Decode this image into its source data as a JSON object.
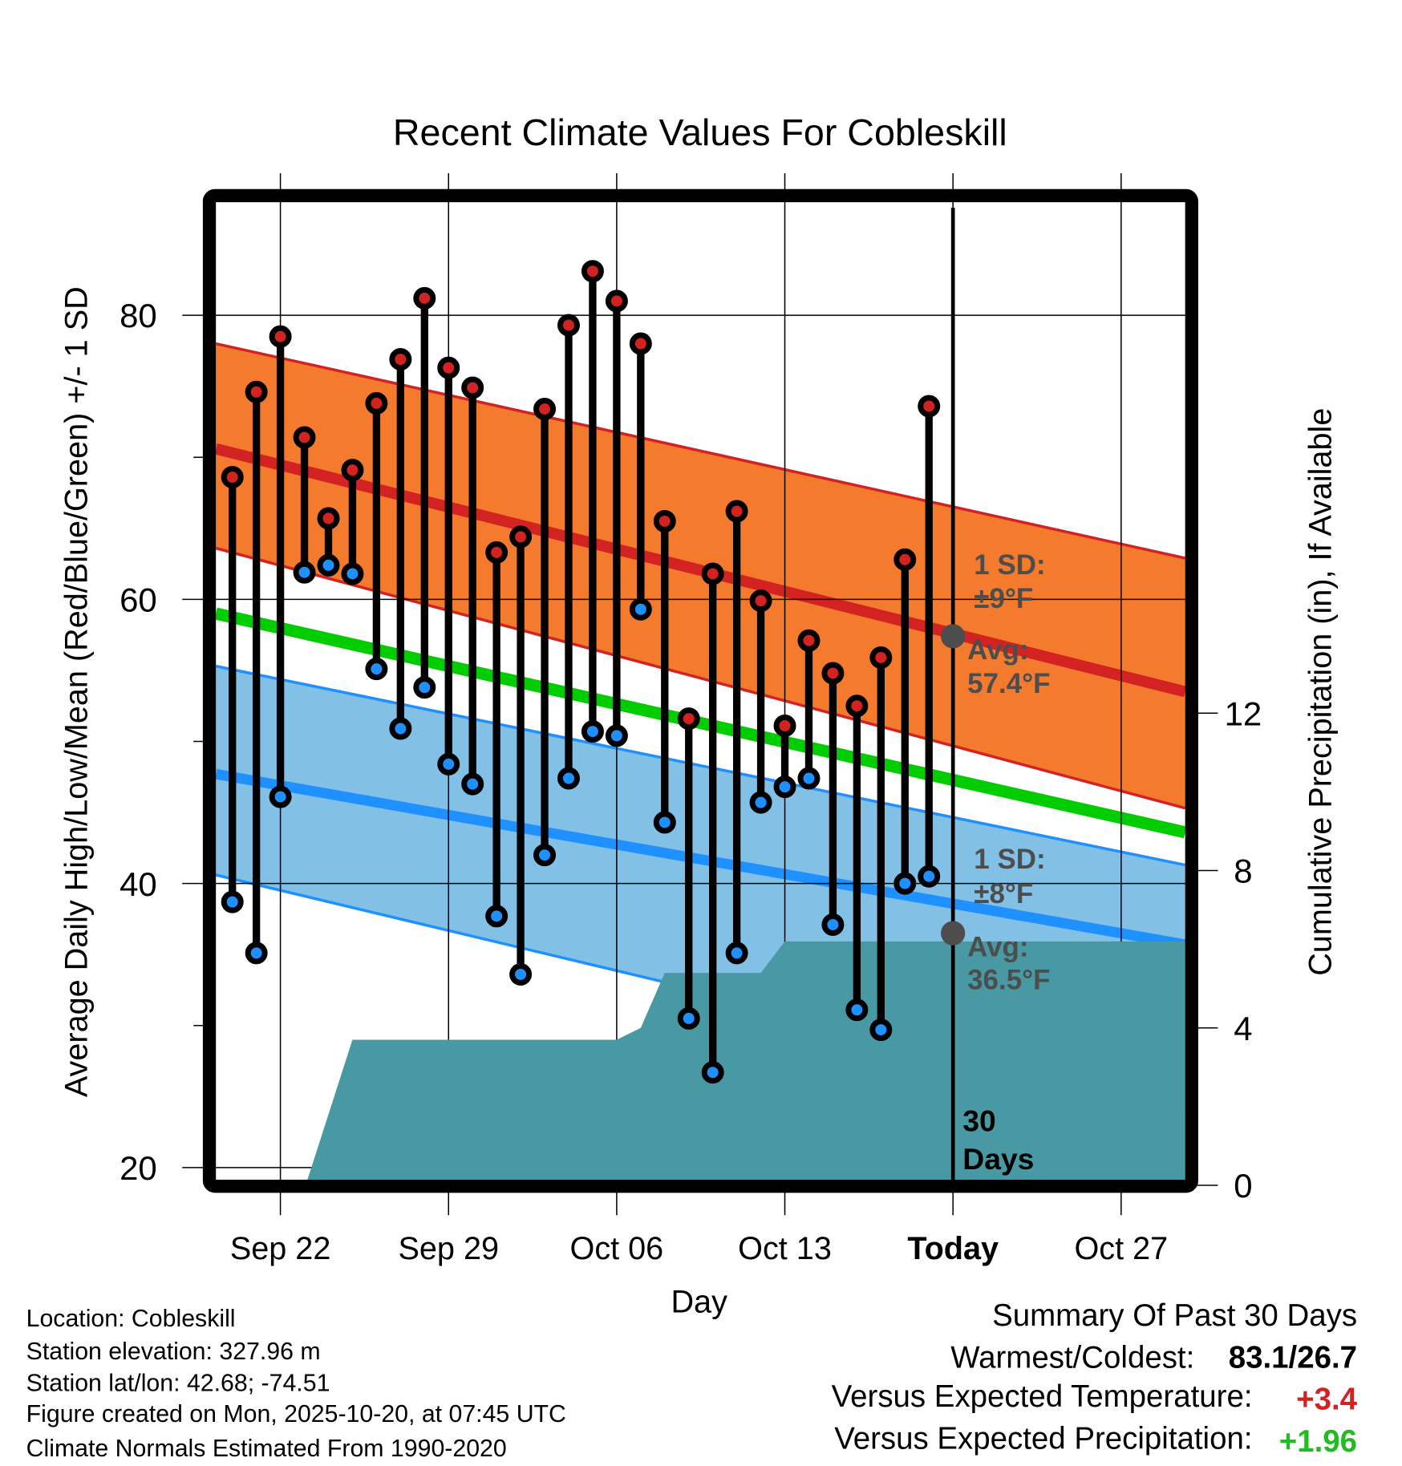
{
  "chart_data": {
    "type": "line",
    "title": "Recent Climate Values For Cobleskill",
    "xlabel": "Day",
    "ylabel": "Average Daily High/Low/Mean (Red/Blue/Green) +/- 1 SD",
    "ylabel_right": "Cumulative Precipitation (in), If Available",
    "ylim": [
      19.3,
      88
    ],
    "ylim_right": [
      0,
      24.8
    ],
    "xlim_days_from_sep22": [
      -2.68,
      37.7
    ],
    "grid": true,
    "x_ticks": [
      {
        "day": 0,
        "label": "Sep 22",
        "bold": false
      },
      {
        "day": 7,
        "label": "Sep 29",
        "bold": false
      },
      {
        "day": 14,
        "label": "Oct 06",
        "bold": false
      },
      {
        "day": 21,
        "label": "Oct 13",
        "bold": false
      },
      {
        "day": 28,
        "label": "Today",
        "bold": true
      },
      {
        "day": 35,
        "label": "Oct 27",
        "bold": false
      }
    ],
    "y_ticks": [
      20,
      40,
      60,
      80
    ],
    "y_minor_ticks": [
      30,
      50,
      70
    ],
    "y_ticks_right": [
      0,
      4,
      8,
      12
    ],
    "dates": [
      "Sep 20",
      "Sep 21",
      "Sep 22",
      "Sep 23",
      "Sep 24",
      "Sep 25",
      "Sep 26",
      "Sep 27",
      "Sep 28",
      "Sep 29",
      "Sep 30",
      "Oct 01",
      "Oct 02",
      "Oct 03",
      "Oct 04",
      "Oct 05",
      "Oct 06",
      "Oct 07",
      "Oct 08",
      "Oct 09",
      "Oct 10",
      "Oct 11",
      "Oct 12",
      "Oct 13",
      "Oct 14",
      "Oct 15",
      "Oct 16",
      "Oct 17",
      "Oct 18",
      "Oct 19"
    ],
    "day_offsets": [
      -2,
      -1,
      0,
      1,
      2,
      3,
      4,
      5,
      6,
      7,
      8,
      9,
      10,
      11,
      12,
      13,
      14,
      15,
      16,
      17,
      18,
      19,
      20,
      21,
      22,
      23,
      24,
      25,
      26,
      27
    ],
    "series": [
      {
        "name": "Daily High",
        "color": "#d22222",
        "values": [
          68.6,
          74.6,
          78.5,
          71.4,
          65.7,
          69.1,
          73.8,
          76.9,
          81.2,
          76.3,
          74.9,
          63.3,
          64.4,
          73.4,
          79.3,
          83.1,
          81.0,
          78.0,
          65.5,
          51.6,
          61.8,
          66.2,
          59.9,
          51.1,
          57.1,
          54.8,
          52.5,
          55.9,
          62.8,
          73.6
        ]
      },
      {
        "name": "Daily Low",
        "color": "#1e90ff",
        "values": [
          38.7,
          35.1,
          46.1,
          61.9,
          62.4,
          61.8,
          55.1,
          50.9,
          53.8,
          48.4,
          47.0,
          37.7,
          33.6,
          42.0,
          47.4,
          50.7,
          50.4,
          59.3,
          44.3,
          30.5,
          26.7,
          35.1,
          45.7,
          46.8,
          47.4,
          37.1,
          31.1,
          29.7,
          40.0,
          40.5
        ]
      },
      {
        "name": "Cumulative Precipitation",
        "color": "#4899a3",
        "points": [
          [
            1.05,
            0
          ],
          [
            3,
            3.7
          ],
          [
            14,
            3.7
          ],
          [
            15,
            4.0
          ],
          [
            16,
            5.4
          ],
          [
            20,
            5.4
          ],
          [
            21,
            6.2
          ],
          [
            37.7,
            6.2
          ]
        ]
      }
    ],
    "normals": {
      "high_avg": [
        70.6,
        53.5
      ],
      "high_upper": [
        78.0,
        62.9
      ],
      "high_lower": [
        63.6,
        45.3
      ],
      "mean": [
        59.0,
        43.6
      ],
      "low_avg": [
        47.7,
        35.7
      ],
      "low_upper": [
        55.3,
        41.3
      ],
      "low_lower": [
        40.6,
        24.3
      ],
      "colors": {
        "high_band": "#f47a2e",
        "high_line": "#d22222",
        "mean_line": "#00cc00",
        "low_band": "#82c0e6",
        "low_line": "#1e90ff"
      }
    },
    "annotations": {
      "high_sd_label": "1 SD:",
      "high_sd_value": "±9°F",
      "high_avg_label": "Avg:",
      "high_avg_value": "57.4°F",
      "high_avg_today": 57.4,
      "low_sd_label": "1 SD:",
      "low_sd_value": "±8°F",
      "low_avg_label": "Avg:",
      "low_avg_value": "36.5°F",
      "low_avg_today": 36.5,
      "period_number": "30",
      "period_unit": "Days",
      "today_day": 28
    }
  },
  "info": {
    "location": "Location: Cobleskill",
    "elevation": "Station elevation: 327.96 m",
    "latlon": "Station lat/lon: 42.68; -74.51",
    "created": "Figure created on Mon, 2025-10-20, at 07:45 UTC",
    "normals": "Climate Normals Estimated From 1990-2020"
  },
  "summary": {
    "title": "Summary Of Past 30 Days",
    "warm_cold_label": "Warmest/Coldest:",
    "warm_cold_value": "83.1/26.7",
    "temp_label": "Versus Expected Temperature:",
    "temp_value": "+3.4",
    "temp_color": "#d22222",
    "precip_label": "Versus Expected Precipitation:",
    "precip_value": "+1.96",
    "precip_color": "#22bb22"
  }
}
